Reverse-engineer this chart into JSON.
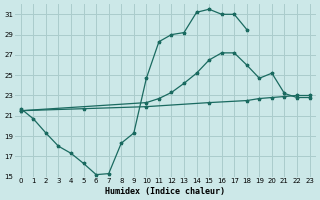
{
  "bg_color": "#cce8e8",
  "grid_color": "#aacccc",
  "line_color": "#1a6a60",
  "line_width": 0.9,
  "marker": "*",
  "marker_size": 2.5,
  "xlabel": "Humidex (Indice chaleur)",
  "xlim": [
    -0.5,
    23.5
  ],
  "ylim": [
    15,
    32
  ],
  "yticks": [
    15,
    17,
    19,
    21,
    23,
    25,
    27,
    29,
    31
  ],
  "xticks": [
    0,
    1,
    2,
    3,
    4,
    5,
    6,
    7,
    8,
    9,
    10,
    11,
    12,
    13,
    14,
    15,
    16,
    17,
    18,
    19,
    20,
    21,
    22,
    23
  ],
  "line1_x": [
    0,
    1,
    2,
    3,
    4,
    5,
    6,
    7,
    8,
    9,
    10,
    11,
    12,
    13,
    14,
    15,
    16,
    17,
    18
  ],
  "line1_y": [
    21.7,
    20.7,
    19.3,
    18.0,
    17.3,
    16.3,
    15.2,
    15.3,
    18.3,
    19.3,
    24.7,
    28.3,
    29.0,
    29.2,
    31.2,
    31.5,
    31.0,
    31.0,
    29.5
  ],
  "line2_x": [
    0,
    10,
    11,
    12,
    13,
    14,
    15,
    16,
    17,
    18,
    19,
    20,
    21,
    22,
    23
  ],
  "line2_y": [
    21.5,
    22.3,
    22.7,
    23.3,
    24.2,
    25.2,
    26.5,
    27.2,
    27.2,
    26.0,
    24.7,
    25.2,
    23.2,
    22.8,
    22.8
  ],
  "line3_x": [
    0,
    5,
    10,
    15,
    18,
    19,
    20,
    21,
    22,
    23
  ],
  "line3_y": [
    21.5,
    21.7,
    21.9,
    22.3,
    22.5,
    22.7,
    22.8,
    22.9,
    23.0,
    23.0
  ]
}
